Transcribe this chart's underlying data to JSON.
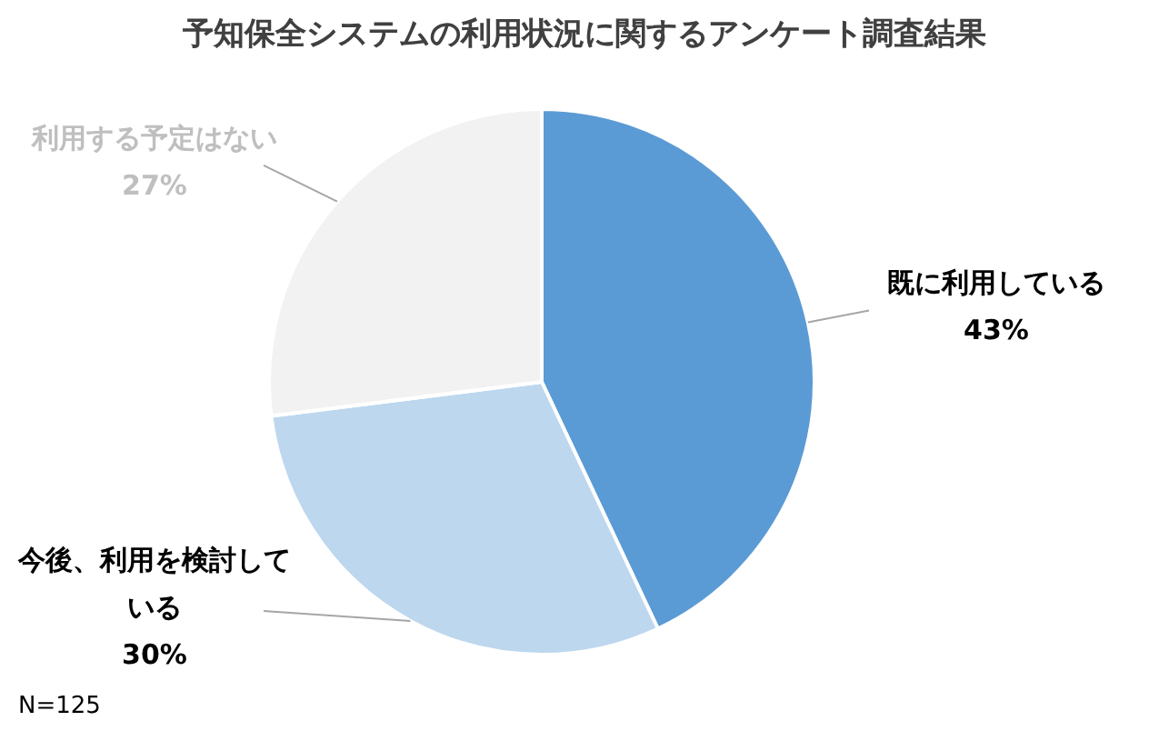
{
  "chart_data": {
    "type": "pie",
    "title": "予知保全システムの利用状況に関するアンケート調査結果",
    "categories": [
      "既に利用している",
      "今後、利用を検討している",
      "利用する予定はない"
    ],
    "values": [
      43,
      30,
      27
    ],
    "colors": [
      "#5b9bd5",
      "#bdd7ee",
      "#f2f2f2"
    ],
    "value_labels": [
      "43%",
      "30%",
      "27%"
    ],
    "annotations": [
      "N=125"
    ]
  }
}
